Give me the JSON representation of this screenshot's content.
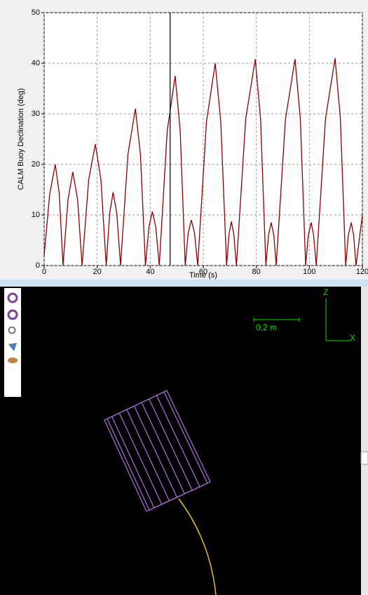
{
  "chart_data": {
    "type": "line",
    "xlabel": "Time (s)",
    "ylabel": "CALM Buoy Declination (deg)",
    "color": "#8b0000",
    "grid": true,
    "cursor_x": 47.5,
    "xlim": [
      0,
      120
    ],
    "ylim": [
      0,
      50
    ],
    "xticks": [
      0,
      20,
      40,
      60,
      80,
      100,
      120
    ],
    "yticks": [
      0,
      10,
      20,
      30,
      40,
      50
    ],
    "x": [
      0,
      2.1,
      4.2,
      5.7,
      7.1,
      9.0,
      10.8,
      12.6,
      14.3,
      16.8,
      19.3,
      21.4,
      23.4,
      24.7,
      26.0,
      27.4,
      28.8,
      31.6,
      34.4,
      36.3,
      38.2,
      39.5,
      40.8,
      42.1,
      43.4,
      46.4,
      49.4,
      51.3,
      53.2,
      54.3,
      55.5,
      56.7,
      57.9,
      61.2,
      64.5,
      66.6,
      68.8,
      69.7,
      70.6,
      71.5,
      72.5,
      76.0,
      79.6,
      81.6,
      83.6,
      84.6,
      85.6,
      86.6,
      87.5,
      91.0,
      94.6,
      96.6,
      98.6,
      99.6,
      100.7,
      101.6,
      102.6,
      106.1,
      109.7,
      111.7,
      113.7,
      114.7,
      115.8,
      116.7,
      117.6,
      118.8,
      120
    ],
    "values": [
      2,
      14.2,
      20,
      14.2,
      0,
      13.1,
      18.5,
      13.1,
      0,
      17,
      24,
      17,
      0,
      10.3,
      14.5,
      10.3,
      0,
      22,
      31,
      22,
      0,
      7.6,
      10.7,
      7.6,
      0,
      26.6,
      37.5,
      26.6,
      0,
      6.4,
      9,
      6.4,
      0,
      28.4,
      40,
      28.4,
      0,
      6.2,
      8.7,
      6.2,
      0,
      29,
      40.8,
      29,
      0,
      6,
      8.5,
      6,
      0,
      29,
      40.8,
      29,
      0,
      6,
      8.5,
      6,
      0,
      29.1,
      41,
      29.1,
      0,
      6,
      8.5,
      6,
      0,
      5,
      10
    ]
  },
  "view3d": {
    "scale_label": "0,2 m",
    "axis_z": "Z",
    "axis_x": "X"
  }
}
